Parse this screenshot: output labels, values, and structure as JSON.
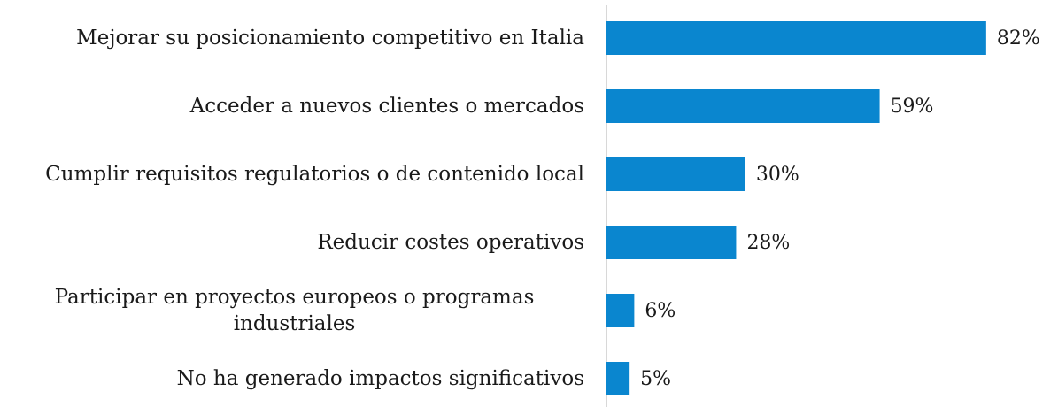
{
  "chart_data": {
    "type": "bar",
    "orientation": "horizontal",
    "categories": [
      "Mejorar su posicionamiento competitivo en Italia",
      "Acceder a nuevos clientes o mercados",
      "Cumplir requisitos regulatorios o de contenido local",
      "Reducir costes operativos",
      "Participar en proyectos europeos o programas industriales",
      "No ha generado impactos significativos"
    ],
    "values": [
      82,
      59,
      30,
      28,
      6,
      5
    ],
    "value_labels": [
      "82%",
      "59%",
      "30%",
      "28%",
      "6%",
      "5%"
    ],
    "color": "#0a86cf"
  }
}
